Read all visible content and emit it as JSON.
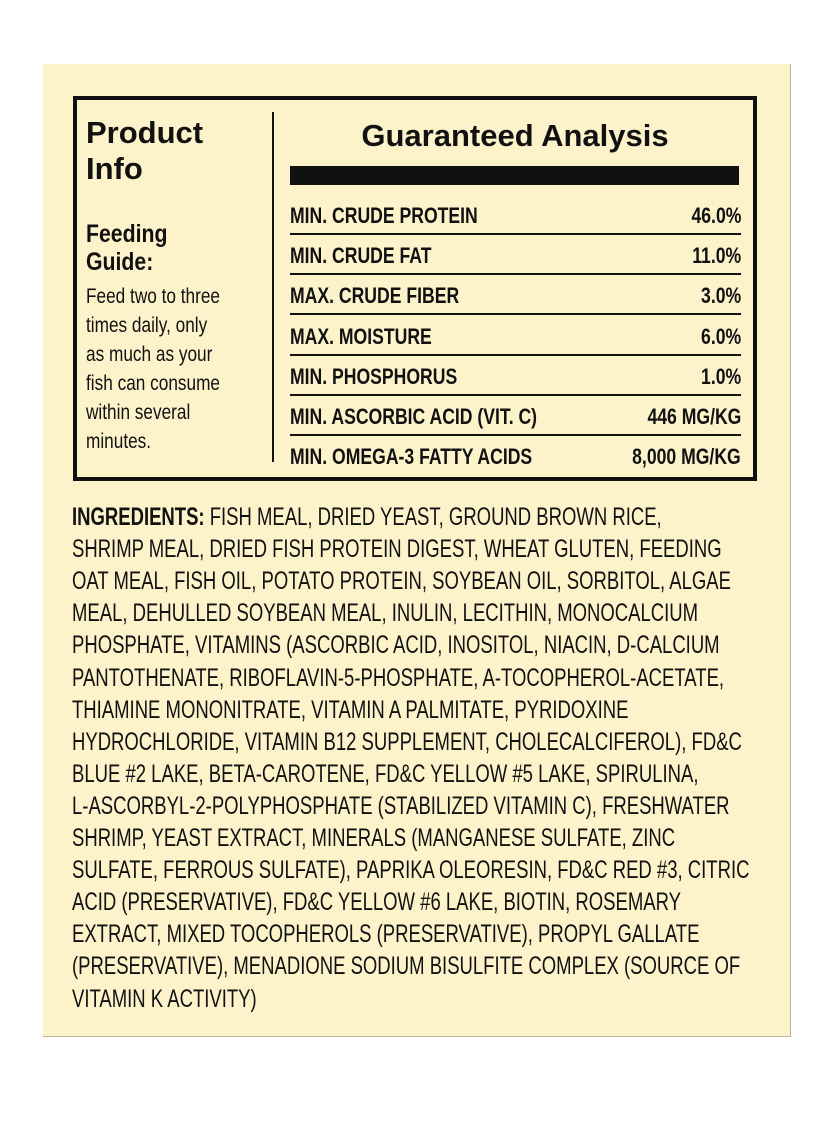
{
  "product_info": {
    "title_line1": "Product",
    "title_line2": "Info",
    "feeding_title_line1": "Feeding",
    "feeding_title_line2": "Guide:",
    "feeding_lines": [
      "Feed two to three",
      "times daily, only",
      "as much as your",
      "fish can consume",
      "within several",
      "minutes."
    ]
  },
  "guaranteed_analysis": {
    "title": "Guaranteed Analysis",
    "rows": [
      {
        "label": "MIN. CRUDE PROTEIN",
        "value": "46.0%"
      },
      {
        "label": "MIN. CRUDE FAT",
        "value": "11.0%"
      },
      {
        "label": "MAX. CRUDE FIBER",
        "value": "3.0%"
      },
      {
        "label": "MAX. MOISTURE",
        "value": "6.0%"
      },
      {
        "label": "MIN. PHOSPHORUS",
        "value": "1.0%"
      },
      {
        "label": "MIN. ASCORBIC ACID (VIT. C)",
        "value": "446 MG/KG"
      },
      {
        "label": "MIN. OMEGA-3 FATTY ACIDS",
        "value": "8,000 MG/KG"
      }
    ]
  },
  "ingredients": {
    "label": "INGREDIENTS:",
    "lines": [
      " FISH MEAL, DRIED YEAST, GROUND BROWN RICE,",
      "SHRIMP MEAL, DRIED FISH PROTEIN DIGEST, WHEAT GLUTEN, FEEDING",
      "OAT MEAL, FISH OIL, POTATO PROTEIN, SOYBEAN OIL, SORBITOL, ALGAE",
      "MEAL, DEHULLED SOYBEAN MEAL, INULIN, LECITHIN, MONOCALCIUM",
      "PHOSPHATE, VITAMINS (ASCORBIC ACID, INOSITOL, NIACIN, D-CALCIUM",
      "PANTOTHENATE, RIBOFLAVIN-5-PHOSPHATE, A-TOCOPHEROL-ACETATE,",
      "THIAMINE MONONITRATE, VITAMIN A PALMITATE, PYRIDOXINE",
      "HYDROCHLORIDE, VITAMIN B12 SUPPLEMENT, CHOLECALCIFEROL), FD&C",
      "BLUE #2 LAKE, BETA-CAROTENE, FD&C YELLOW #5 LAKE, SPIRULINA,",
      "L-ASCORBYL-2-POLYPHOSPHATE (STABILIZED VITAMIN C), FRESHWATER",
      "SHRIMP, YEAST EXTRACT, MINERALS (MANGANESE SULFATE, ZINC",
      "SULFATE, FERROUS SULFATE), PAPRIKA OLEORESIN, FD&C RED #3, CITRIC",
      "ACID (PRESERVATIVE), FD&C YELLOW #6 LAKE, BIOTIN, ROSEMARY",
      "EXTRACT, MIXED TOCOPHEROLS (PRESERVATIVE), PROPYL GALLATE",
      "(PRESERVATIVE), MENADIONE SODIUM BISULFITE COMPLEX (SOURCE OF",
      "VITAMIN K ACTIVITY)"
    ]
  },
  "colors": {
    "label_background": "#fdf3cb",
    "ink": "#111111"
  }
}
